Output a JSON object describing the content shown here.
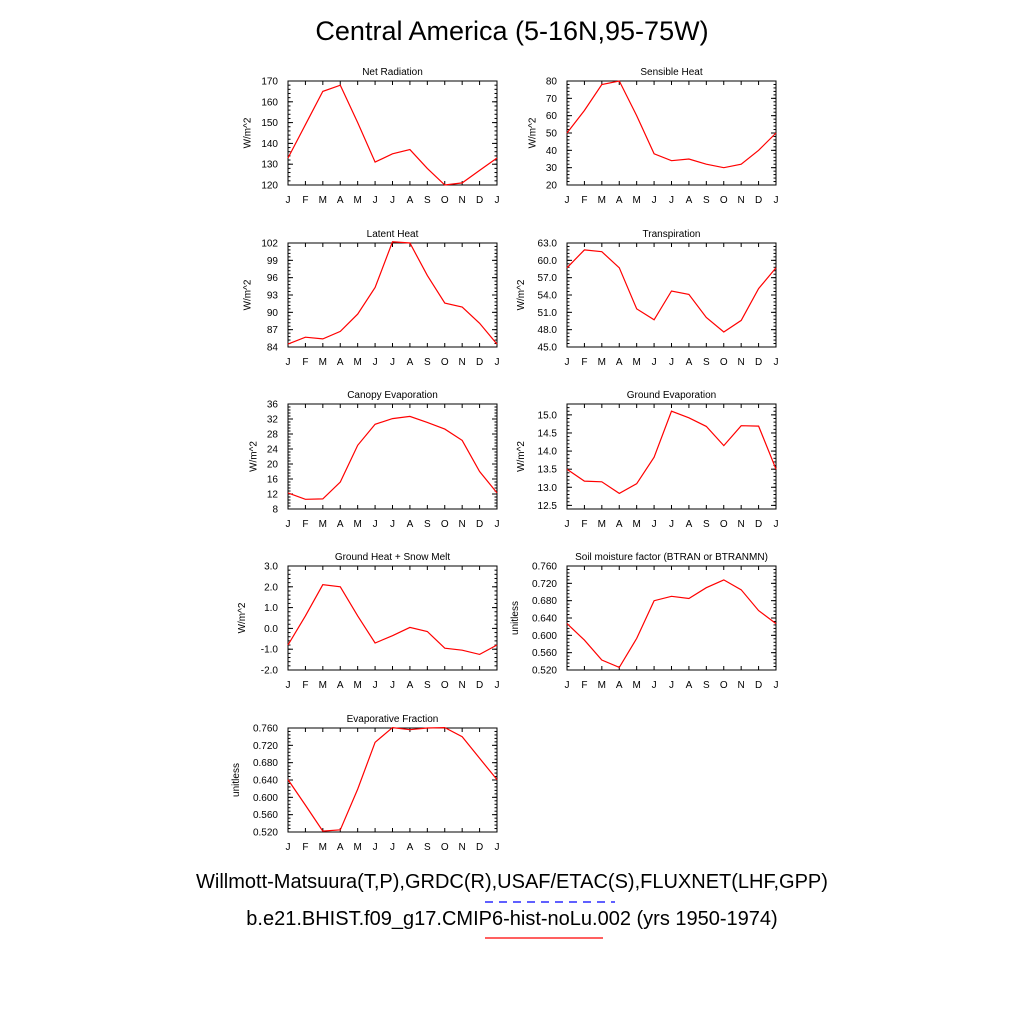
{
  "title": "Central America (5-16N,95-75W)",
  "legend": [
    {
      "text": "Willmott-Matsuura(T,P),GRDC(R),USAF/ETAC(S),FLUXNET(LHF,GPP)",
      "color": "#0000ff",
      "dash": true
    },
    {
      "text": "b.e21.BHIST.f09_g17.CMIP6-hist-noLu.002 (yrs 1950-1974)",
      "color": "#ff0000",
      "dash": false
    }
  ],
  "chart_data": [
    {
      "type": "line",
      "title": "Net Radiation",
      "ylabel": "W/m^2",
      "x": [
        "J",
        "F",
        "M",
        "A",
        "M",
        "J",
        "J",
        "A",
        "S",
        "O",
        "N",
        "D",
        "J"
      ],
      "yticks": [
        "120",
        "130",
        "140",
        "150",
        "160",
        "170"
      ],
      "ylim": [
        120,
        170
      ],
      "series": [
        {
          "values": [
            133,
            149,
            165,
            168,
            150,
            131,
            135,
            137,
            128,
            120,
            121,
            127,
            133
          ]
        }
      ]
    },
    {
      "type": "line",
      "title": "Sensible Heat",
      "ylabel": "W/m^2",
      "x": [
        "J",
        "F",
        "M",
        "A",
        "M",
        "J",
        "J",
        "A",
        "S",
        "O",
        "N",
        "D",
        "J"
      ],
      "yticks": [
        "20",
        "30",
        "40",
        "50",
        "60",
        "70",
        "80"
      ],
      "ylim": [
        20,
        80
      ],
      "series": [
        {
          "values": [
            50,
            63,
            78,
            80,
            60,
            38,
            34,
            35,
            32,
            30,
            32,
            40,
            50
          ]
        }
      ]
    },
    {
      "type": "line",
      "title": "Latent Heat",
      "ylabel": "W/m^2",
      "x": [
        "J",
        "F",
        "M",
        "A",
        "M",
        "J",
        "J",
        "A",
        "S",
        "O",
        "N",
        "D",
        "J"
      ],
      "yticks": [
        "84",
        "87",
        "90",
        "93",
        "96",
        "99",
        "102"
      ],
      "ylim": [
        84,
        102
      ],
      "series": [
        {
          "values": [
            84.5,
            85.7,
            85.4,
            86.7,
            89.7,
            94.3,
            102.2,
            102.0,
            96.4,
            91.6,
            90.9,
            88.1,
            84.5
          ]
        }
      ]
    },
    {
      "type": "line",
      "title": "Transpiration",
      "ylabel": "W/m^2",
      "x": [
        "J",
        "F",
        "M",
        "A",
        "M",
        "J",
        "J",
        "A",
        "S",
        "O",
        "N",
        "D",
        "J"
      ],
      "yticks": [
        "45.0",
        "48.0",
        "51.0",
        "54.0",
        "57.0",
        "60.0",
        "63.0"
      ],
      "ylim": [
        45,
        63
      ],
      "series": [
        {
          "values": [
            58.7,
            61.8,
            61.5,
            58.7,
            51.6,
            49.7,
            54.7,
            54.1,
            50.1,
            47.6,
            49.6,
            55.1,
            58.7
          ]
        }
      ]
    },
    {
      "type": "line",
      "title": "Canopy Evaporation",
      "ylabel": "W/m^2",
      "x": [
        "J",
        "F",
        "M",
        "A",
        "M",
        "J",
        "J",
        "A",
        "S",
        "O",
        "N",
        "D",
        "J"
      ],
      "yticks": [
        "8",
        "12",
        "16",
        "20",
        "24",
        "28",
        "32",
        "36"
      ],
      "ylim": [
        8,
        36
      ],
      "series": [
        {
          "values": [
            12.3,
            10.6,
            10.7,
            15.2,
            25.0,
            30.6,
            32.1,
            32.7,
            31.1,
            29.3,
            26.3,
            18.0,
            12.3
          ]
        }
      ]
    },
    {
      "type": "line",
      "title": "Ground Evaporation",
      "ylabel": "W/m^2",
      "x": [
        "J",
        "F",
        "M",
        "A",
        "M",
        "J",
        "J",
        "A",
        "S",
        "O",
        "N",
        "D",
        "J"
      ],
      "yticks": [
        "12.5",
        "13.0",
        "13.5",
        "14.0",
        "14.5",
        "15.0"
      ],
      "ylim": [
        12.4,
        15.3
      ],
      "series": [
        {
          "values": [
            13.5,
            13.17,
            13.15,
            12.83,
            13.1,
            13.83,
            15.1,
            14.92,
            14.68,
            14.15,
            14.7,
            14.69,
            13.5
          ]
        }
      ]
    },
    {
      "type": "line",
      "title": "Ground Heat + Snow Melt",
      "ylabel": "W/m^2",
      "x": [
        "J",
        "F",
        "M",
        "A",
        "M",
        "J",
        "J",
        "A",
        "S",
        "O",
        "N",
        "D",
        "J"
      ],
      "yticks": [
        "-2.0",
        "-1.0",
        "0.0",
        "1.0",
        "2.0",
        "3.0"
      ],
      "ylim": [
        -2,
        3
      ],
      "series": [
        {
          "values": [
            -0.8,
            0.6,
            2.1,
            2.0,
            0.6,
            -0.7,
            -0.35,
            0.05,
            -0.15,
            -0.95,
            -1.05,
            -1.25,
            -0.8
          ]
        }
      ]
    },
    {
      "type": "line",
      "title": "Soil moisture factor (BTRAN or BTRANMN)",
      "ylabel": "unitless",
      "x": [
        "J",
        "F",
        "M",
        "A",
        "M",
        "J",
        "J",
        "A",
        "S",
        "O",
        "N",
        "D",
        "J"
      ],
      "yticks": [
        "0.520",
        "0.560",
        "0.600",
        "0.640",
        "0.680",
        "0.720",
        "0.760"
      ],
      "ylim": [
        0.52,
        0.76
      ],
      "series": [
        {
          "values": [
            0.627,
            0.589,
            0.543,
            0.526,
            0.593,
            0.68,
            0.69,
            0.685,
            0.71,
            0.728,
            0.705,
            0.657,
            0.627
          ]
        }
      ]
    },
    {
      "type": "line",
      "title": "Evaporative Fraction",
      "ylabel": "unitless",
      "x": [
        "J",
        "F",
        "M",
        "A",
        "M",
        "J",
        "J",
        "A",
        "S",
        "O",
        "N",
        "D",
        "J"
      ],
      "yticks": [
        "0.520",
        "0.560",
        "0.600",
        "0.640",
        "0.680",
        "0.720",
        "0.760"
      ],
      "ylim": [
        0.52,
        0.76
      ],
      "series": [
        {
          "values": [
            0.641,
            0.582,
            0.522,
            0.525,
            0.619,
            0.727,
            0.761,
            0.756,
            0.76,
            0.761,
            0.74,
            0.69,
            0.641
          ]
        }
      ]
    }
  ]
}
